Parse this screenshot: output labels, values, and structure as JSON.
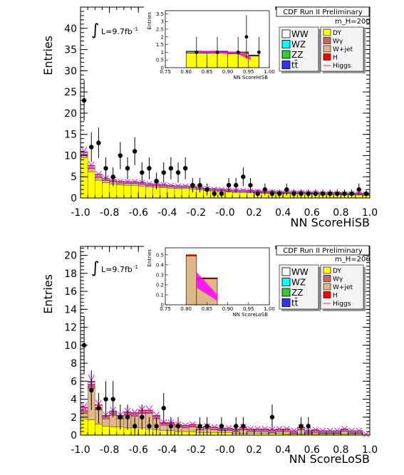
{
  "chart_data": [
    {
      "type": "bar",
      "panel": "top",
      "title": "CDF Run II Preliminary",
      "mass_label": "m_H=200",
      "lumi_label": "L=9.7fb",
      "lumi_sup": "-1",
      "integral_symbol": "∫",
      "xlabel": "NN ScoreHiSB",
      "ylabel": "Entries",
      "xlim": [
        -1.0,
        1.0
      ],
      "ylim": [
        0,
        45
      ],
      "x_ticks": [
        "-1.0",
        "-0.8",
        "-0.6",
        "-0.4",
        "-0.2",
        "-0.0",
        "0.2",
        "0.4",
        "0.6",
        "0.8",
        "1.0"
      ],
      "y_ticks": [
        "0",
        "5",
        "10",
        "15",
        "20",
        "25",
        "30",
        "35",
        "40"
      ],
      "grid": false,
      "bins_low_edges": [
        -1.0,
        -0.95,
        -0.9,
        -0.85,
        -0.8,
        -0.75,
        -0.7,
        -0.65,
        -0.6,
        -0.55,
        -0.5,
        -0.45,
        -0.4,
        -0.35,
        -0.3,
        -0.25,
        -0.2,
        -0.15,
        -0.1,
        -0.05,
        0.0,
        0.05,
        0.1,
        0.15,
        0.2,
        0.25,
        0.3,
        0.35,
        0.4,
        0.45,
        0.5,
        0.55,
        0.6,
        0.65,
        0.7,
        0.75,
        0.8,
        0.85,
        0.9,
        0.95
      ],
      "bin_width": 0.05,
      "stack_order": [
        "DY",
        "W+jet",
        "Wγ",
        "WW",
        "H"
      ],
      "stack": {
        "DY": [
          9.5,
          6.2,
          4.2,
          3.6,
          3.3,
          3.1,
          3.0,
          3.0,
          2.8,
          2.6,
          2.5,
          2.4,
          2.3,
          2.2,
          2.2,
          2.1,
          1.9,
          1.7,
          1.6,
          1.5,
          1.4,
          1.3,
          1.3,
          1.2,
          1.2,
          1.1,
          1.1,
          1.0,
          1.0,
          1.0,
          1.0,
          0.9,
          0.9,
          0.8,
          0.8,
          0.8,
          0.7,
          0.7,
          0.7,
          0.6
        ],
        "W+jet": [
          0.6,
          0.7,
          0.6,
          0.5,
          0.5,
          0.4,
          0.4,
          0.4,
          0.4,
          0.3,
          0.3,
          0.3,
          0.3,
          0.3,
          0.3,
          0.3,
          0.3,
          0.2,
          0.2,
          0.2,
          0.2,
          0.2,
          0.2,
          0.2,
          0.1,
          0.1,
          0.1,
          0.1,
          0.1,
          0.1,
          0.1,
          0.1,
          0.1,
          0.1,
          0.1,
          0.1,
          0.1,
          0.1,
          0.1,
          0.1
        ],
        "Wγ": [
          0.3,
          0.3,
          0.3,
          0.2,
          0.2,
          0.2,
          0.2,
          0.2,
          0.2,
          0.2,
          0.2,
          0.2,
          0.1,
          0.1,
          0.1,
          0.1,
          0.1,
          0.1,
          0.1,
          0.1,
          0.1,
          0.1,
          0.1,
          0.1,
          0.1,
          0.1,
          0.1,
          0.1,
          0.1,
          0.1,
          0.1,
          0.1,
          0.1,
          0.1,
          0.1,
          0.1,
          0.1,
          0.1,
          0.1,
          0.1
        ],
        "WW": [
          0.3,
          0.3,
          0.3,
          0.3,
          0.2,
          0.2,
          0.2,
          0.2,
          0.2,
          0.2,
          0.2,
          0.2,
          0.2,
          0.2,
          0.2,
          0.2,
          0.2,
          0.2,
          0.2,
          0.2,
          0.2,
          0.2,
          0.2,
          0.2,
          0.2,
          0.2,
          0.2,
          0.2,
          0.2,
          0.2,
          0.2,
          0.2,
          0.2,
          0.2,
          0.2,
          0.2,
          0.2,
          0.2,
          0.2,
          0.2
        ],
        "H": [
          0.2,
          0.2,
          0.2,
          0.1,
          0.1,
          0.1,
          0.1,
          0.1,
          0.1,
          0.1,
          0.1,
          0.1,
          0.1,
          0.1,
          0.1,
          0.1,
          0.1,
          0.1,
          0.1,
          0.1,
          0.1,
          0.1,
          0.1,
          0.1,
          0.1,
          0.1,
          0.1,
          0.1,
          0.1,
          0.1,
          0.1,
          0.1,
          0.1,
          0.1,
          0.1,
          0.1,
          0.1,
          0.1,
          0.1,
          0.1
        ]
      },
      "data_points": [
        {
          "x": -0.975,
          "y": 23,
          "err": 4.8
        },
        {
          "x": -0.925,
          "y": 12,
          "err": 3.5
        },
        {
          "x": -0.875,
          "y": 13,
          "err": 3.6
        },
        {
          "x": -0.825,
          "y": 7,
          "err": 2.6
        },
        {
          "x": -0.775,
          "y": 5,
          "err": 2.2
        },
        {
          "x": -0.725,
          "y": 10,
          "err": 3.2
        },
        {
          "x": -0.675,
          "y": 7,
          "err": 2.6
        },
        {
          "x": -0.625,
          "y": 11,
          "err": 3.3
        },
        {
          "x": -0.575,
          "y": 6,
          "err": 2.4
        },
        {
          "x": -0.525,
          "y": 7,
          "err": 2.6
        },
        {
          "x": -0.475,
          "y": 4,
          "err": 2.0
        },
        {
          "x": -0.425,
          "y": 6,
          "err": 2.4
        },
        {
          "x": -0.375,
          "y": 7,
          "err": 2.6
        },
        {
          "x": -0.325,
          "y": 6,
          "err": 2.4
        },
        {
          "x": -0.275,
          "y": 7,
          "err": 2.6
        },
        {
          "x": -0.225,
          "y": 3,
          "err": 1.7
        },
        {
          "x": -0.175,
          "y": 3,
          "err": 1.7
        },
        {
          "x": -0.125,
          "y": 2,
          "err": 1.4
        },
        {
          "x": -0.075,
          "y": 1,
          "err": 1.0
        },
        {
          "x": -0.025,
          "y": 1,
          "err": 1.0
        },
        {
          "x": 0.025,
          "y": 3,
          "err": 1.7
        },
        {
          "x": 0.075,
          "y": 3,
          "err": 1.7
        },
        {
          "x": 0.125,
          "y": 5,
          "err": 2.2
        },
        {
          "x": 0.175,
          "y": 3,
          "err": 1.7
        },
        {
          "x": 0.225,
          "y": 1,
          "err": 1.0
        },
        {
          "x": 0.275,
          "y": 2,
          "err": 1.4
        },
        {
          "x": 0.325,
          "y": 1,
          "err": 1.0
        },
        {
          "x": 0.375,
          "y": 1,
          "err": 1.0
        },
        {
          "x": 0.425,
          "y": 2,
          "err": 1.4
        },
        {
          "x": 0.475,
          "y": 1,
          "err": 1.0
        },
        {
          "x": 0.525,
          "y": 1,
          "err": 1.0
        },
        {
          "x": 0.575,
          "y": 1,
          "err": 1.0
        },
        {
          "x": 0.625,
          "y": 1,
          "err": 1.0
        },
        {
          "x": 0.675,
          "y": 1,
          "err": 1.0
        },
        {
          "x": 0.725,
          "y": 1,
          "err": 1.0
        },
        {
          "x": 0.775,
          "y": 1,
          "err": 1.0
        },
        {
          "x": 0.825,
          "y": 1,
          "err": 1.0
        },
        {
          "x": 0.875,
          "y": 1,
          "err": 1.0
        },
        {
          "x": 0.925,
          "y": 2,
          "err": 1.4
        },
        {
          "x": 0.975,
          "y": 1,
          "err": 1.0
        }
      ],
      "inset": {
        "xlabel": "NN ScoreHiSB",
        "ylabel": "Entries",
        "xlim": [
          0.75,
          1.0
        ],
        "ylim": [
          0,
          3.7
        ],
        "x_ticks": [
          "0.75",
          "0.80",
          "0.85",
          "0.90",
          "0.95",
          "1.00"
        ],
        "y_ticks": [
          "0",
          "0.5",
          "1",
          "1.5",
          "2",
          "2.5",
          "3",
          "3.5"
        ],
        "bins": [
          {
            "lo": 0.8,
            "hi": 0.85,
            "DY": 0.95,
            "W+jet": 0.1,
            "H": 0.02
          },
          {
            "lo": 0.85,
            "hi": 0.9,
            "DY": 0.95,
            "W+jet": 0.1,
            "H": 0.02
          },
          {
            "lo": 0.9,
            "hi": 0.95,
            "DY": 0.9,
            "W+jet": 0.1,
            "H": 0.02
          },
          {
            "lo": 0.95,
            "hi": 0.975,
            "DY": 0.75,
            "W+jet": 0.05,
            "H": 0.02
          }
        ],
        "band": [
          {
            "x": 0.825,
            "y": 1.05,
            "err": 0.06
          },
          {
            "x": 0.875,
            "y": 1.0,
            "err": 0.06
          },
          {
            "x": 0.925,
            "y": 0.95,
            "err": 0.08
          },
          {
            "x": 0.955,
            "y": 0.6,
            "err": 0.1
          }
        ],
        "data_points": [
          {
            "x": 0.825,
            "y": 1,
            "err": 1.0
          },
          {
            "x": 0.875,
            "y": 1,
            "err": 1.0
          },
          {
            "x": 0.925,
            "y": 1,
            "err": 1.0
          },
          {
            "x": 0.945,
            "y": 2,
            "err": 1.4
          },
          {
            "x": 0.975,
            "y": 1,
            "err": 1.0
          }
        ]
      }
    },
    {
      "type": "bar",
      "panel": "bottom",
      "title": "CDF Run II Preliminary",
      "mass_label": "m_H=200",
      "lumi_label": "L=9.7fb",
      "lumi_sup": "-1",
      "integral_symbol": "∫",
      "xlabel": "NN ScoreLoSB",
      "ylabel": "Entries",
      "xlim": [
        -1.0,
        1.0
      ],
      "ylim": [
        0,
        21
      ],
      "x_ticks": [
        "-1.0",
        "-0.8",
        "-0.6",
        "-0.4",
        "-0.2",
        "-0.0",
        "0.2",
        "0.4",
        "0.6",
        "0.8",
        "1.0"
      ],
      "y_ticks": [
        "0",
        "2",
        "4",
        "6",
        "8",
        "10",
        "12",
        "14",
        "16",
        "18",
        "20"
      ],
      "grid": false,
      "bins_low_edges": [
        -1.0,
        -0.95,
        -0.9,
        -0.85,
        -0.8,
        -0.75,
        -0.7,
        -0.65,
        -0.6,
        -0.55,
        -0.5,
        -0.45,
        -0.4,
        -0.35,
        -0.3,
        -0.25,
        -0.2,
        -0.15,
        -0.1,
        -0.05,
        0.0,
        0.05,
        0.1,
        0.15,
        0.2,
        0.25,
        0.3,
        0.35,
        0.4,
        0.45,
        0.5,
        0.55,
        0.6,
        0.65,
        0.7,
        0.75,
        0.8,
        0.85,
        0.9,
        0.95
      ],
      "bin_width": 0.05,
      "stack_order": [
        "DY",
        "W+jet",
        "Wγ",
        "WW",
        "H"
      ],
      "stack": {
        "DY": [
          1.8,
          1.7,
          1.2,
          1.0,
          0.9,
          0.9,
          0.8,
          0.8,
          0.8,
          0.7,
          0.6,
          0.5,
          0.5,
          0.4,
          0.4,
          0.4,
          0.3,
          0.3,
          0.3,
          0.3,
          0.3,
          0.2,
          0.2,
          0.2,
          0.2,
          0.2,
          0.2,
          0.2,
          0.1,
          0.1,
          0.1,
          0.1,
          0.1,
          0.1,
          0.1,
          0.1,
          0.1,
          0.1,
          0.1,
          0.1
        ],
        "W+jet": [
          0.6,
          3.5,
          1.6,
          0.8,
          1.3,
          0.9,
          1.4,
          1.3,
          1.6,
          1.7,
          1.2,
          0.6,
          0.6,
          0.5,
          0.4,
          0.5,
          0.3,
          0.4,
          0.3,
          0.2,
          0.2,
          0.2,
          0.4,
          0.2,
          0.2,
          0.2,
          0.1,
          0.2,
          0.3,
          0.1,
          0.5,
          0.1,
          0.2,
          0.1,
          0.1,
          0.1,
          0.3,
          0.1,
          0.1,
          0.0
        ],
        "Wγ": [
          0.4,
          0.5,
          0.3,
          0.2,
          0.3,
          0.2,
          0.2,
          0.2,
          0.2,
          0.2,
          0.2,
          0.1,
          0.1,
          0.1,
          0.1,
          0.1,
          0.1,
          0.1,
          0.1,
          0.1,
          0.1,
          0.1,
          0.1,
          0.1,
          0.1,
          0.1,
          0.1,
          0.1,
          0.1,
          0.1,
          0.1,
          0.1,
          0.1,
          0.1,
          0.1,
          0.1,
          0.1,
          0.1,
          0.1,
          0.0
        ],
        "WW": [
          0.2,
          0.2,
          0.2,
          0.1,
          0.1,
          0.1,
          0.1,
          0.1,
          0.1,
          0.1,
          0.1,
          0.1,
          0.1,
          0.1,
          0.1,
          0.1,
          0.1,
          0.1,
          0.1,
          0.1,
          0.1,
          0.1,
          0.1,
          0.1,
          0.1,
          0.1,
          0.1,
          0.1,
          0.1,
          0.1,
          0.1,
          0.1,
          0.1,
          0.1,
          0.1,
          0.1,
          0.1,
          0.1,
          0.1,
          0.0
        ],
        "H": [
          0.1,
          0.1,
          0.1,
          0.1,
          0.1,
          0.1,
          0.1,
          0.1,
          0.1,
          0.1,
          0.1,
          0.1,
          0.1,
          0.1,
          0.1,
          0.1,
          0.1,
          0.1,
          0.1,
          0.1,
          0.1,
          0.1,
          0.1,
          0.1,
          0.1,
          0.1,
          0.1,
          0.1,
          0.1,
          0.1,
          0.1,
          0.1,
          0.1,
          0.1,
          0.1,
          0.1,
          0.1,
          0.1,
          0.1,
          0.0
        ]
      },
      "data_points": [
        {
          "x": -0.975,
          "y": 10,
          "err": 3.2
        },
        {
          "x": -0.925,
          "y": 5,
          "err": 2.2
        },
        {
          "x": -0.875,
          "y": 3,
          "err": 1.7
        },
        {
          "x": -0.825,
          "y": 4,
          "err": 2.0
        },
        {
          "x": -0.775,
          "y": 4,
          "err": 2.0
        },
        {
          "x": -0.725,
          "y": 2,
          "err": 1.4
        },
        {
          "x": -0.675,
          "y": 2,
          "err": 1.4
        },
        {
          "x": -0.625,
          "y": 1,
          "err": 1.0
        },
        {
          "x": -0.575,
          "y": 2,
          "err": 1.4
        },
        {
          "x": -0.525,
          "y": 1,
          "err": 1.0
        },
        {
          "x": -0.475,
          "y": 1,
          "err": 1.0
        },
        {
          "x": -0.425,
          "y": 3,
          "err": 1.7
        },
        {
          "x": -0.375,
          "y": 1,
          "err": 1.0
        },
        {
          "x": -0.325,
          "y": 1,
          "err": 1.0
        },
        {
          "x": -0.175,
          "y": 1,
          "err": 1.0
        },
        {
          "x": -0.125,
          "y": 1,
          "err": 1.0
        },
        {
          "x": -0.025,
          "y": 1,
          "err": 1.0
        },
        {
          "x": 0.075,
          "y": 1,
          "err": 1.0
        },
        {
          "x": 0.125,
          "y": 1,
          "err": 1.0
        },
        {
          "x": 0.325,
          "y": 2,
          "err": 1.4
        },
        {
          "x": 0.525,
          "y": 1,
          "err": 1.0
        },
        {
          "x": 0.575,
          "y": 1,
          "err": 1.0
        }
      ],
      "inset": {
        "xlabel": "NN ScoreLoSB",
        "ylabel": "Entries",
        "xlim": [
          0.75,
          1.0
        ],
        "ylim": [
          0,
          0.57
        ],
        "x_ticks": [
          "0.75",
          "0.80",
          "0.85",
          "0.90",
          "0.95",
          "1.00"
        ],
        "y_ticks": [
          "0",
          "0.1",
          "0.2",
          "0.3",
          "0.4",
          "0.5"
        ],
        "bins": [
          {
            "lo": 0.8,
            "hi": 0.825,
            "DY": 0.0,
            "W+jet": 0.49,
            "H": 0.01
          },
          {
            "lo": 0.825,
            "hi": 0.875,
            "DY": 0.0,
            "W+jet": 0.26,
            "H": 0.01
          }
        ],
        "band": [
          {
            "x": 0.825,
            "y": 0.25,
            "err": 0.08
          },
          {
            "x": 0.875,
            "y": 0.07,
            "err": 0.03
          }
        ],
        "data_points": []
      }
    }
  ],
  "legend": {
    "left": [
      {
        "label": "WW",
        "color": "#ffffff"
      },
      {
        "label": "WZ",
        "color": "#00ffff"
      },
      {
        "label": "ZZ",
        "color": "#33cc33"
      },
      {
        "label": "tt̄",
        "color": "#3333ff"
      }
    ],
    "right": [
      {
        "label": "DY",
        "color": "#ffff00"
      },
      {
        "label": "Wγ",
        "color": "#cc6666"
      },
      {
        "label": "W+jet",
        "color": "#deb887"
      },
      {
        "label": "H",
        "color": "#ff0000"
      },
      {
        "label": "Higgs",
        "color": "#ff3333",
        "line": true
      }
    ]
  },
  "colors": {
    "DY": "#ffff00",
    "W+jet": "#deb887",
    "Wγ": "#cc6666",
    "WW": "#ffffff",
    "H": "#ff0000",
    "band": "#ff00ff",
    "data": "#000000"
  }
}
